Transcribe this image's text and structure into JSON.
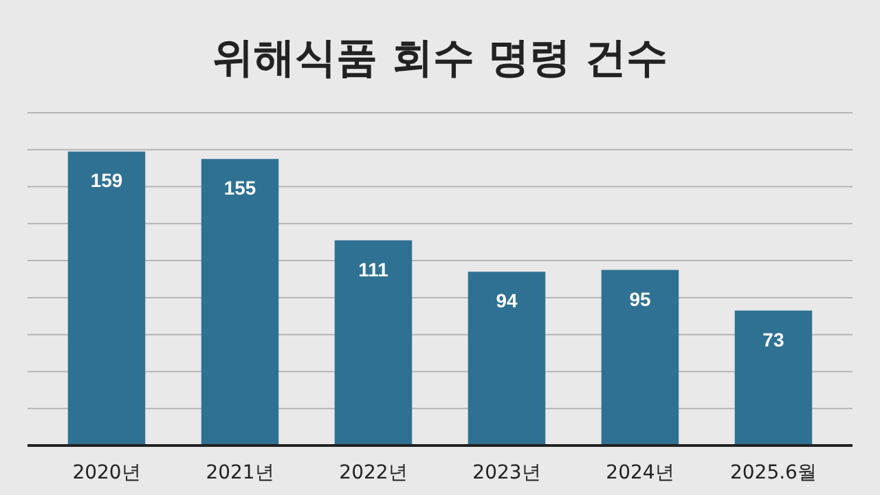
{
  "chart_data": {
    "type": "bar",
    "title": "위해식품 회수 명령 건수",
    "categories": [
      "2020년",
      "2021년",
      "2022년",
      "2023년",
      "2024년",
      "2025.6월"
    ],
    "values": [
      159,
      155,
      111,
      94,
      95,
      73
    ],
    "color": "#2f7192",
    "ylim": [
      0,
      180
    ],
    "yticks": [
      {
        "value": 0,
        "label": null
      },
      {
        "value": 20,
        "label": null
      },
      {
        "value": 40,
        "label": null
      },
      {
        "value": 60,
        "label": null
      },
      {
        "value": 80,
        "label": null
      },
      {
        "value": 100,
        "label": null
      },
      {
        "value": 120,
        "label": null
      },
      {
        "value": 140,
        "label": null
      },
      {
        "value": 160,
        "label": null
      },
      {
        "value": 180,
        "label": null
      }
    ],
    "grid": "y",
    "data_labels": true,
    "tick_labels": "x"
  }
}
